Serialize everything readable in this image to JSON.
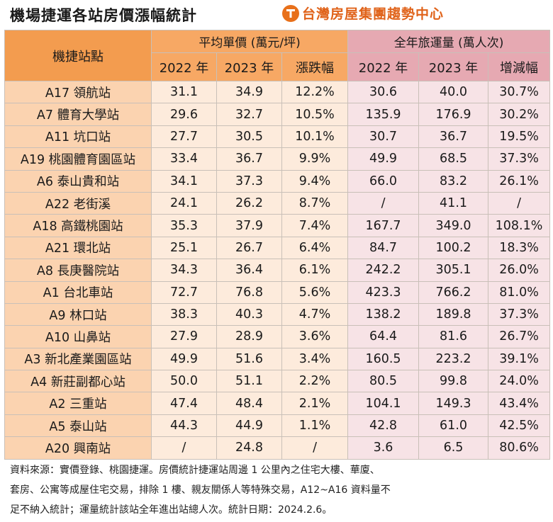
{
  "title": "機場捷運各站房價漲幅統計",
  "brand": {
    "name": "台灣房屋集團趨勢中心",
    "logo_icon": "taiwan-realty-logo-icon",
    "color": "#e0631a"
  },
  "table": {
    "station_header": "機捷站點",
    "price_group": "平均單價 (萬元/坪)",
    "ridership_group": "全年旅運量 (萬人次)",
    "price_cols": [
      "2022 年",
      "2023 年",
      "漲跌幅"
    ],
    "ridership_cols": [
      "2022 年",
      "2023 年",
      "增減幅"
    ],
    "rows": [
      [
        "A17 領航站",
        "31.1",
        "34.9",
        "12.2%",
        "30.6",
        "40.0",
        "30.7%"
      ],
      [
        "A7 體育大學站",
        "29.6",
        "32.7",
        "10.5%",
        "135.9",
        "176.9",
        "30.2%"
      ],
      [
        "A11 坑口站",
        "27.7",
        "30.5",
        "10.1%",
        "30.7",
        "36.7",
        "19.5%"
      ],
      [
        "A19 桃園體育園區站",
        "33.4",
        "36.7",
        "9.9%",
        "49.9",
        "68.5",
        "37.3%"
      ],
      [
        "A6 泰山貴和站",
        "34.1",
        "37.3",
        "9.4%",
        "66.0",
        "83.2",
        "26.1%"
      ],
      [
        "A22 老街溪",
        "24.1",
        "26.2",
        "8.7%",
        "/",
        "41.1",
        "/"
      ],
      [
        "A18 高鐵桃園站",
        "35.3",
        "37.9",
        "7.4%",
        "167.7",
        "349.0",
        "108.1%"
      ],
      [
        "A21 環北站",
        "25.1",
        "26.7",
        "6.4%",
        "84.7",
        "100.2",
        "18.3%"
      ],
      [
        "A8 長庚醫院站",
        "34.3",
        "36.4",
        "6.1%",
        "242.2",
        "305.1",
        "26.0%"
      ],
      [
        "A1 台北車站",
        "72.7",
        "76.8",
        "5.6%",
        "423.3",
        "766.2",
        "81.0%"
      ],
      [
        "A9 林口站",
        "38.3",
        "40.3",
        "4.7%",
        "138.2",
        "189.8",
        "37.3%"
      ],
      [
        "A10 山鼻站",
        "27.9",
        "28.9",
        "3.6%",
        "64.4",
        "81.6",
        "26.7%"
      ],
      [
        "A3 新北產業園區站",
        "49.9",
        "51.6",
        "3.4%",
        "160.5",
        "223.2",
        "39.1%"
      ],
      [
        "A4 新莊副都心站",
        "50.0",
        "51.1",
        "2.2%",
        "80.5",
        "99.8",
        "24.0%"
      ],
      [
        "A2 三重站",
        "47.4",
        "48.4",
        "2.1%",
        "104.1",
        "149.3",
        "43.4%"
      ],
      [
        "A5 泰山站",
        "44.3",
        "44.9",
        "1.1%",
        "42.8",
        "61.0",
        "42.5%"
      ],
      [
        "A20 興南站",
        "/",
        "24.8",
        "/",
        "3.6",
        "6.5",
        "80.6%"
      ]
    ]
  },
  "notes": [
    "資料來源：實價登錄、桃園捷運。房價統計捷運站周邊 1 公里內之住宅大樓、華廈、",
    "套房、公寓等成屋住宅交易，排除 1 樓、親友關係人等特殊交易，A12~A16 資料量不",
    "足不納入統計；運量統計該站全年進出站總人次。統計日期：2024.2.6。"
  ]
}
